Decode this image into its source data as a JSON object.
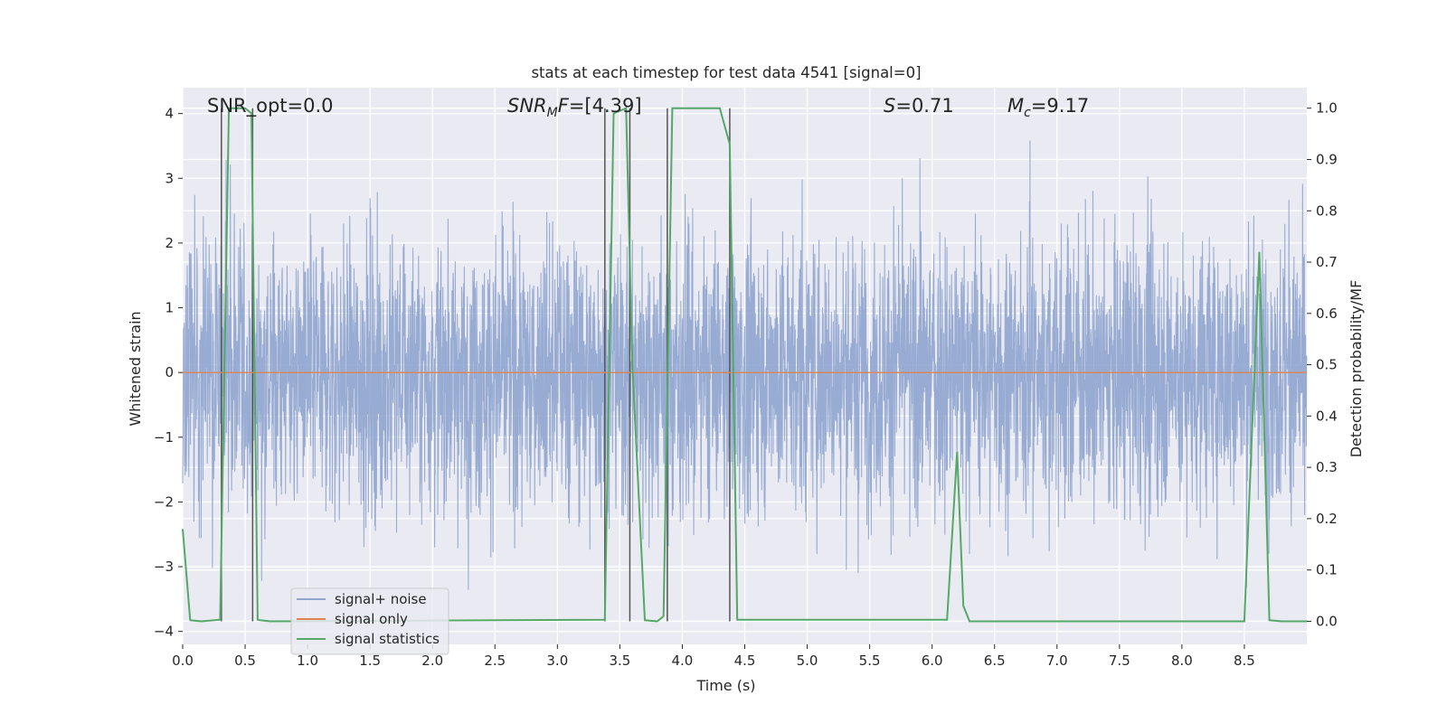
{
  "chart_data": {
    "type": "line",
    "title": "stats at each timestep for test data 4541 [signal=0]",
    "xlabel": "Time (s)",
    "ylabel": "Whitened strain",
    "ylabel_right": "Detection probability/MF",
    "xlim": [
      0,
      9
    ],
    "ylim": [
      -4.2,
      4.4
    ],
    "ylim_right": [
      -0.045,
      1.04
    ],
    "x_ticks": [
      "0.0",
      "0.5",
      "1.0",
      "1.5",
      "2.0",
      "2.5",
      "3.0",
      "3.5",
      "4.0",
      "4.5",
      "5.0",
      "5.5",
      "6.0",
      "6.5",
      "7.0",
      "7.5",
      "8.0",
      "8.5"
    ],
    "x_tick_values": [
      0,
      0.5,
      1,
      1.5,
      2,
      2.5,
      3,
      3.5,
      4,
      4.5,
      5,
      5.5,
      6,
      6.5,
      7,
      7.5,
      8,
      8.5
    ],
    "y_ticks": [
      "−4",
      "−3",
      "−2",
      "−1",
      "0",
      "1",
      "2",
      "3",
      "4"
    ],
    "y_tick_values": [
      -4,
      -3,
      -2,
      -1,
      0,
      1,
      2,
      3,
      4
    ],
    "y_right_ticks": [
      "0.0",
      "0.1",
      "0.2",
      "0.3",
      "0.4",
      "0.5",
      "0.6",
      "0.7",
      "0.8",
      "0.9",
      "1.0"
    ],
    "y_right_tick_values": [
      0,
      0.1,
      0.2,
      0.3,
      0.4,
      0.5,
      0.6,
      0.7,
      0.8,
      0.9,
      1.0
    ],
    "grid": true,
    "legend_position": "lower-left",
    "annotations": {
      "snr_opt": "SNR_opt=0.0",
      "snr_mf_prefix": "SNR",
      "snr_mf_sub": "M",
      "snr_mf_rest": "F=[4.39]",
      "s_prefix": "S",
      "s_rest": "=0.71",
      "mc_prefix": "M",
      "mc_sub": "c",
      "mc_rest": "=9.17"
    },
    "series": [
      {
        "name": "signal+ noise",
        "color": "#8fa5cf",
        "axis": "left",
        "description_noise": {
          "mean": 0,
          "std": 1.0,
          "min": -3.6,
          "max": 3.6,
          "samples": 9
        }
      },
      {
        "name": "signal only",
        "color": "#dd8452",
        "axis": "left",
        "x": [
          0,
          9
        ],
        "y": [
          0,
          0
        ]
      },
      {
        "name": "signal statistics",
        "color": "#55a868",
        "axis": "right",
        "x": [
          0,
          0.06,
          0.15,
          0.3,
          0.37,
          0.5,
          0.55,
          0.6,
          0.62,
          0.7,
          3.38,
          3.45,
          3.55,
          3.6,
          3.7,
          3.8,
          3.85,
          3.92,
          4.0,
          4.3,
          4.38,
          4.44,
          6.12,
          6.2,
          6.25,
          6.3,
          8.5,
          8.62,
          8.7,
          8.8,
          9
        ],
        "y": [
          0.18,
          0.002,
          0.0,
          0.003,
          1.0,
          1.0,
          0.99,
          0.003,
          0.002,
          0.0,
          0.003,
          0.99,
          1.0,
          0.5,
          0.002,
          0.0,
          0.01,
          1.0,
          1.0,
          1.0,
          0.93,
          0.003,
          0.003,
          0.33,
          0.03,
          0.0,
          0.0,
          0.72,
          0.002,
          0.0,
          0.0
        ]
      }
    ],
    "vertical_lines_x": [
      0.31,
      0.56,
      3.38,
      3.58,
      3.88,
      4.38
    ]
  }
}
